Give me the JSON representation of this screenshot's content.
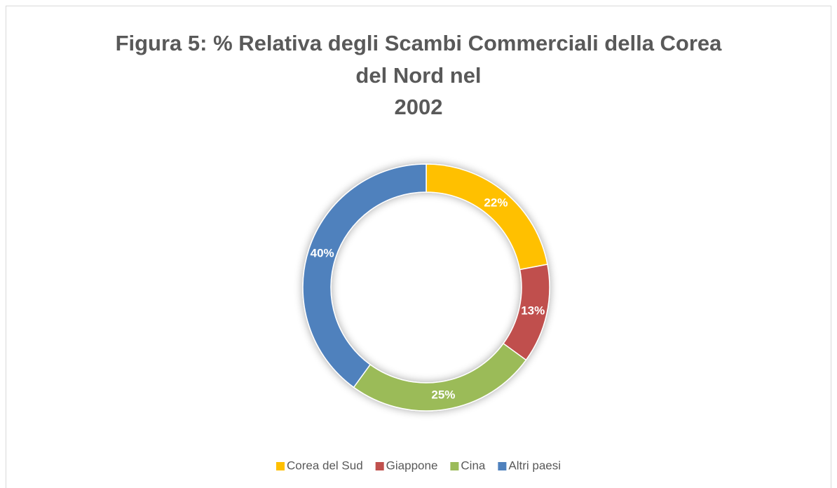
{
  "chart_data": {
    "type": "donut",
    "title": [
      "Figura 5: % Relativa degli Scambi Commerciali della Corea",
      "del Nord nel",
      "2002"
    ],
    "categories": [
      "Corea del Sud",
      "Giappone",
      "Cina",
      "Altri paesi"
    ],
    "values": [
      22,
      13,
      25,
      40
    ],
    "value_labels": [
      "22%",
      "13%",
      "25%",
      "40%"
    ],
    "colors": [
      "#FFC000",
      "#C0504D",
      "#9BBB59",
      "#4F81BD"
    ],
    "legend": "bottom"
  }
}
